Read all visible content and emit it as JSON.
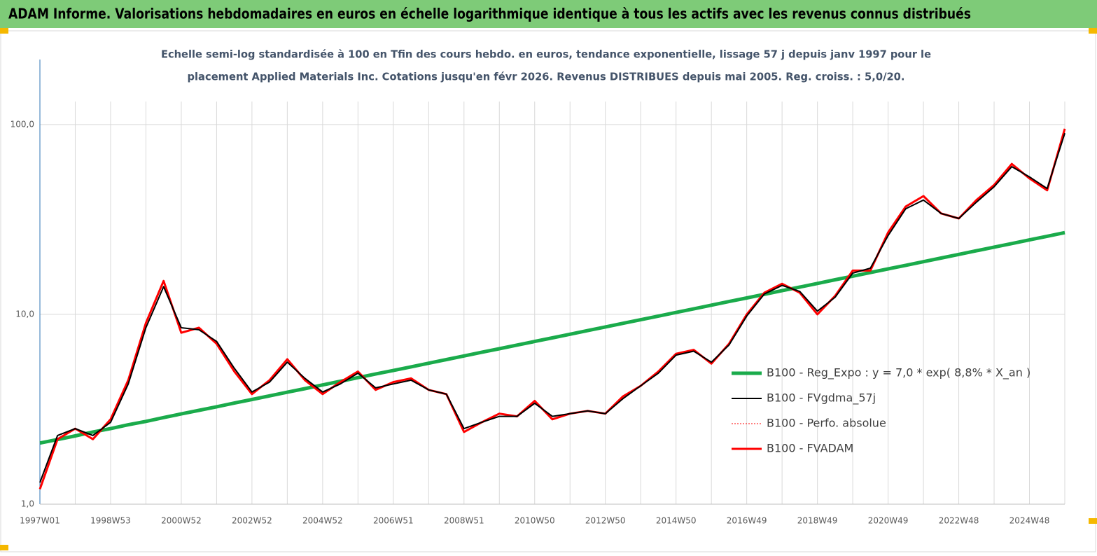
{
  "header": {
    "title": "ADAM Informe. Valorisations hebdomadaires en euros en échelle logarithmique identique à tous les actifs avec les revenus connus distribués"
  },
  "chart_data": {
    "type": "line",
    "subtitle": [
      "Echelle semi-log standardisée à 100 en Tfin des cours hebdo. en euros, tendance exponentielle, lissage 57 j depuis janv 1997 pour le",
      "placement Applied Materials Inc. Cotations jusqu'en févr 2026. Revenus DISTRIBUES depuis mai 2005. Reg. croiss. : 5,0/20."
    ],
    "categories": [
      "1997W01",
      null,
      null,
      null,
      "1998W53",
      null,
      null,
      null,
      "2000W52",
      null,
      null,
      null,
      "2002W52",
      null,
      null,
      null,
      "2004W52",
      null,
      null,
      null,
      "2006W51",
      null,
      null,
      null,
      "2008W51",
      null,
      null,
      null,
      "2010W50",
      null,
      null,
      null,
      "2012W50",
      null,
      null,
      null,
      "2014W50",
      null,
      null,
      null,
      "2016W49",
      null,
      null,
      null,
      "2018W49",
      null,
      null,
      null,
      "2020W49",
      null,
      null,
      null,
      "2022W48",
      null,
      null,
      null,
      "2024W48",
      null,
      null
    ],
    "log_scale": true,
    "ylim": [
      1,
      220
    ],
    "yticks": [
      {
        "value": 1,
        "label": "1,0"
      },
      {
        "value": 10,
        "label": "10,0"
      },
      {
        "value": 100,
        "label": "100,0"
      }
    ],
    "grid": true,
    "series": [
      {
        "name": "B100 - Reg_Expo : y = 7,0 *  exp( 8,8% *  X_an )",
        "color": "#1aab4b",
        "line_width": 5,
        "dash": "solid",
        "values": [
          2.1,
          2.19,
          2.29,
          2.4,
          2.5,
          2.62,
          2.73,
          2.86,
          2.99,
          3.12,
          3.26,
          3.41,
          3.56,
          3.72,
          3.89,
          4.06,
          4.25,
          4.44,
          4.64,
          4.85,
          5.06,
          5.29,
          5.53,
          5.78,
          6.04,
          6.31,
          6.59,
          6.89,
          7.2,
          7.52,
          7.86,
          8.21,
          8.58,
          8.97,
          9.37,
          9.79,
          10.23,
          10.69,
          11.18,
          11.68,
          12.2,
          12.75,
          13.33,
          13.92,
          14.55,
          15.21,
          15.89,
          16.6,
          17.35,
          18.13,
          18.95,
          19.8,
          20.69,
          21.62,
          22.6,
          23.61,
          24.68,
          25.79,
          26.95
        ]
      },
      {
        "name": "B100 - FVgdma_57j",
        "color": "#000000",
        "line_width": 2,
        "dash": "solid",
        "values": [
          1.3,
          2.3,
          2.5,
          2.3,
          2.7,
          4.3,
          8.5,
          14,
          8.5,
          8.3,
          7.2,
          5.2,
          3.9,
          4.4,
          5.6,
          4.6,
          3.9,
          4.3,
          4.9,
          4.1,
          4.3,
          4.5,
          4.0,
          3.8,
          2.5,
          2.7,
          2.9,
          2.9,
          3.4,
          2.9,
          3.0,
          3.1,
          3.0,
          3.6,
          4.2,
          4.9,
          6.1,
          6.4,
          5.6,
          6.9,
          9.8,
          12.8,
          14.2,
          13.2,
          10.4,
          12.3,
          16.5,
          17.5,
          26,
          36,
          40,
          34,
          32,
          39,
          47,
          60,
          53,
          46,
          90
        ]
      },
      {
        "name": "B100 - Perfo. absolue",
        "color": "#ff0000",
        "line_width": 1,
        "dash": "dotted",
        "values": [
          1.2,
          2.2,
          2.5,
          2.2,
          2.8,
          4.5,
          9,
          15,
          8,
          8.5,
          7,
          5,
          3.8,
          4.5,
          5.8,
          4.5,
          3.8,
          4.4,
          5.0,
          4.0,
          4.4,
          4.6,
          4.0,
          3.8,
          2.4,
          2.7,
          3.0,
          2.9,
          3.5,
          2.8,
          3.0,
          3.1,
          3.0,
          3.7,
          4.2,
          5.0,
          6.2,
          6.5,
          5.5,
          7.0,
          10,
          13,
          14.5,
          13,
          10,
          12.5,
          17,
          17,
          27,
          37,
          42,
          34,
          32,
          40,
          48,
          62,
          52,
          45,
          95
        ]
      },
      {
        "name": "B100 - FVADAM",
        "color": "#ff0000",
        "line_width": 3,
        "dash": "solid",
        "values": [
          1.2,
          2.2,
          2.5,
          2.2,
          2.8,
          4.5,
          9,
          15,
          8,
          8.5,
          7,
          5,
          3.8,
          4.5,
          5.8,
          4.5,
          3.8,
          4.4,
          5.0,
          4.0,
          4.4,
          4.6,
          4.0,
          3.8,
          2.4,
          2.7,
          3.0,
          2.9,
          3.5,
          2.8,
          3.0,
          3.1,
          3.0,
          3.7,
          4.2,
          5.0,
          6.2,
          6.5,
          5.5,
          7.0,
          10,
          13,
          14.5,
          13,
          10,
          12.5,
          17,
          17,
          27,
          37,
          42,
          34,
          32,
          40,
          48,
          62,
          52,
          45,
          95
        ]
      }
    ]
  }
}
